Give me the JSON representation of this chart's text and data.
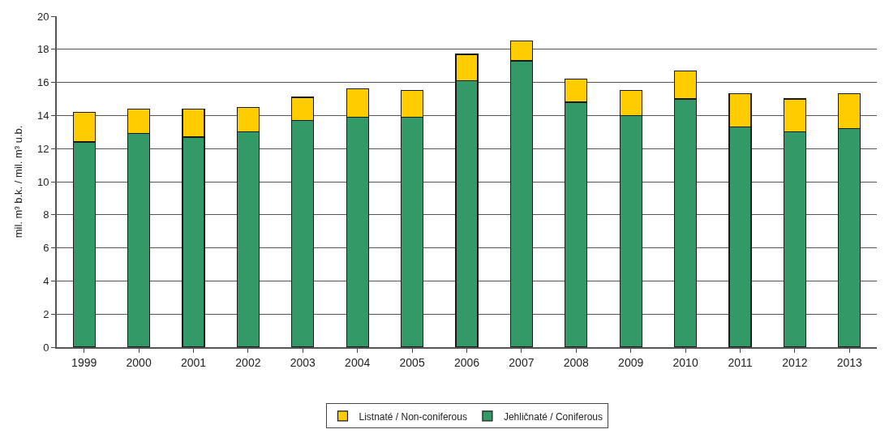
{
  "chart_data": {
    "type": "bar",
    "stacked": true,
    "ylabel": "mil. m³ b.k. / mil. m³ u.b.",
    "categories": [
      "1999",
      "2000",
      "2001",
      "2002",
      "2003",
      "2004",
      "2005",
      "2006",
      "2007",
      "2008",
      "2009",
      "2010",
      "2011",
      "2012",
      "2013"
    ],
    "series": [
      {
        "name": "Jehličnaté / Coniferous",
        "color": "#339966",
        "values": [
          12.4,
          12.9,
          12.7,
          13.0,
          13.7,
          13.9,
          13.9,
          16.1,
          17.3,
          14.8,
          14.0,
          15.0,
          13.3,
          13.0,
          13.2
        ]
      },
      {
        "name": "Listnaté / Non-coniferous",
        "color": "#ffcc00",
        "values": [
          1.8,
          1.5,
          1.7,
          1.5,
          1.4,
          1.7,
          1.6,
          1.6,
          1.2,
          1.4,
          1.5,
          1.7,
          2.0,
          2.0,
          2.1
        ]
      }
    ],
    "ylim": [
      0,
      20
    ],
    "yticks": [
      0,
      2,
      4,
      6,
      8,
      10,
      12,
      14,
      16,
      18,
      20
    ],
    "grid": "y",
    "legend": "bottom"
  }
}
